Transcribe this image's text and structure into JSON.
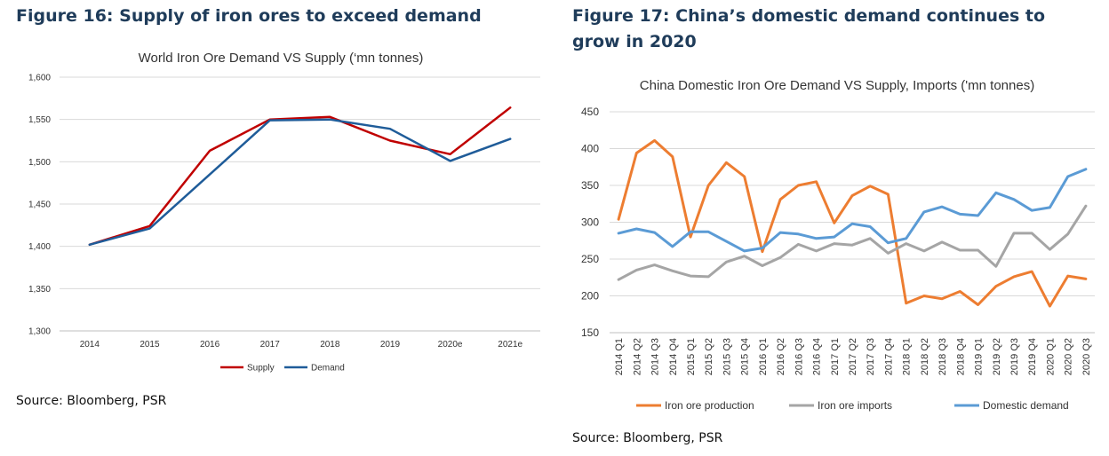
{
  "figure16": {
    "heading": "Figure 16: Supply of iron ores to exceed demand",
    "source": "Source: Bloomberg, PSR"
  },
  "figure17": {
    "heading": "Figure 17: China’s domestic demand continues to grow in 2020",
    "source": "Source: Bloomberg, PSR"
  },
  "chart_data": [
    {
      "type": "line",
      "title": "World Iron Ore Demand VS Supply (‘mn tonnes)",
      "xlabel": "",
      "ylabel": "",
      "categories": [
        "2014",
        "2015",
        "2016",
        "2017",
        "2018",
        "2019",
        "2020e",
        "2021e"
      ],
      "ylim": [
        1300,
        1600
      ],
      "yticks": [
        "1,300",
        "1,350",
        "1,400",
        "1,450",
        "1,500",
        "1,550",
        "1,600"
      ],
      "grid": true,
      "legend": "bottom",
      "series": [
        {
          "name": "Supply",
          "color": "#c00000",
          "values": [
            1402,
            1424,
            1513,
            1550,
            1553,
            1525,
            1509,
            1564
          ]
        },
        {
          "name": "Demand",
          "color": "#1f5c99",
          "values": [
            1402,
            1421,
            1485,
            1549,
            1550,
            1539,
            1501,
            1527
          ]
        }
      ]
    },
    {
      "type": "line",
      "title": "China Domestic Iron Ore Demand VS Supply, Imports ('mn tonnes)",
      "xlabel": "",
      "ylabel": "",
      "categories": [
        "2014 Q1",
        "2014 Q2",
        "2014 Q3",
        "2014 Q4",
        "2015 Q1",
        "2015 Q2",
        "2015 Q3",
        "2015 Q4",
        "2016 Q1",
        "2016 Q2",
        "2016 Q3",
        "2016 Q4",
        "2017 Q1",
        "2017 Q2",
        "2017 Q3",
        "2017 Q4",
        "2018 Q1",
        "2018 Q2",
        "2018 Q3",
        "2018 Q4",
        "2019 Q1",
        "2019 Q2",
        "2019 Q3",
        "2019 Q4",
        "2020 Q1",
        "2020 Q2",
        "2020 Q3"
      ],
      "ylim": [
        150,
        450
      ],
      "yticks": [
        "150",
        "200",
        "250",
        "300",
        "350",
        "400",
        "450"
      ],
      "grid": true,
      "legend": "bottom",
      "series": [
        {
          "name": "Iron ore production",
          "color": "#ed7d31",
          "values": [
            304,
            394,
            411,
            389,
            280,
            350,
            381,
            362,
            260,
            331,
            350,
            355,
            299,
            336,
            349,
            338,
            190,
            200,
            196,
            206,
            188,
            213,
            226,
            233,
            186,
            227,
            223
          ]
        },
        {
          "name": "Iron ore imports",
          "color": "#a5a5a5",
          "values": [
            222,
            235,
            242,
            234,
            227,
            226,
            246,
            254,
            241,
            252,
            270,
            261,
            271,
            269,
            278,
            258,
            271,
            261,
            273,
            262,
            262,
            240,
            285,
            285,
            263,
            284,
            322
          ]
        },
        {
          "name": "Domestic demand",
          "color": "#5b9bd5",
          "values": [
            285,
            291,
            286,
            267,
            287,
            287,
            274,
            261,
            265,
            286,
            284,
            278,
            280,
            298,
            294,
            272,
            278,
            314,
            321,
            311,
            309,
            340,
            331,
            316,
            320,
            362,
            372
          ]
        }
      ]
    }
  ]
}
